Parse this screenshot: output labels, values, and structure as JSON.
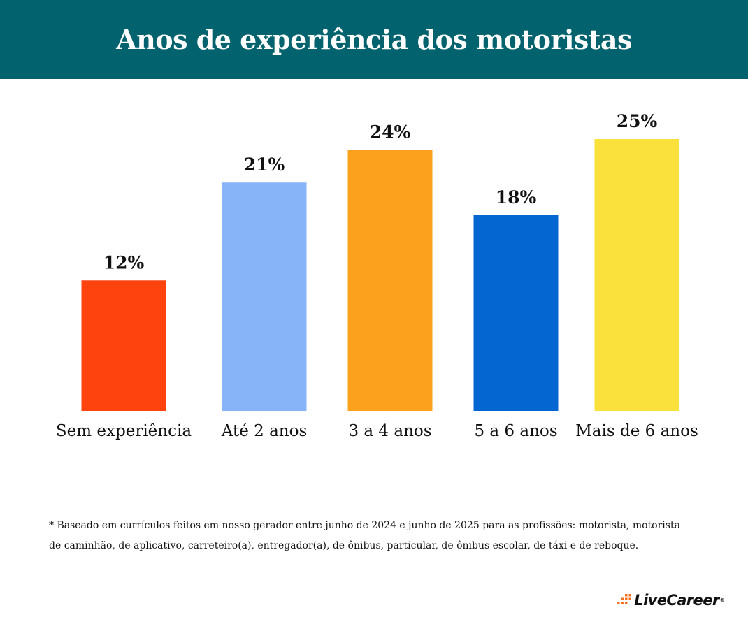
{
  "header": {
    "title": "Anos de experiência dos motoristas"
  },
  "chart_data": {
    "type": "bar",
    "title": "Anos de experiência dos motoristas",
    "categories": [
      "Sem experiência",
      "Até 2 anos",
      "3 a 4 anos",
      "5 a 6 anos",
      "Mais de 6 anos"
    ],
    "values": [
      12,
      21,
      24,
      18,
      25
    ],
    "value_labels": [
      "12%",
      "21%",
      "24%",
      "18%",
      "25%"
    ],
    "colors": [
      "#fe430f",
      "#87b4f8",
      "#fca11e",
      "#0466d0",
      "#fbe13b"
    ],
    "unit": "%",
    "xlabel": "",
    "ylabel": "",
    "ylim": [
      0,
      25
    ],
    "grid": false,
    "legend": "none"
  },
  "footnote": {
    "line1": "* Baseado em currículos feitos em nosso gerador entre junho de 2024 e junho de 2025 para as profissões: motorista, motorista",
    "line2": "de caminhão, de aplicativo, carreteiro(a), entregador(a), de ônibus, particular, de ônibus escolar, de táxi e de reboque."
  },
  "brand": {
    "name": "LiveCareer",
    "mark": "logo-dots-icon",
    "accent": "#f37021",
    "trademark": "®"
  }
}
